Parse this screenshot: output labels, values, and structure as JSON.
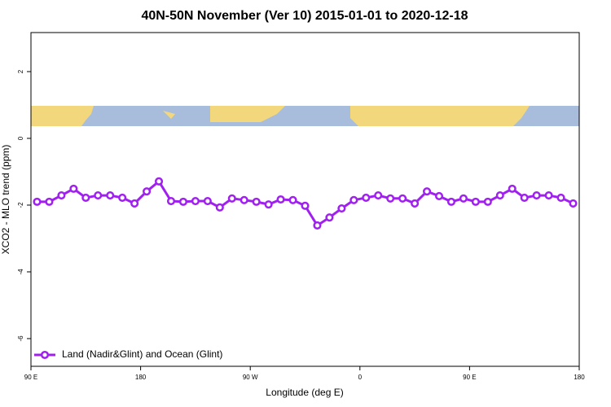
{
  "chart_data": {
    "type": "line",
    "title": "40N-50N November (Ver 10)   2015-01-01 to 2020-12-18",
    "x_label": "Longitude (deg E)",
    "y_label": "XCO2 - MLO trend (ppm)",
    "x": [
      95,
      105,
      115,
      125,
      135,
      145,
      155,
      165,
      175,
      185,
      195,
      205,
      215,
      225,
      235,
      245,
      255,
      265,
      275,
      285,
      295,
      305,
      315,
      325,
      335,
      345,
      355,
      365,
      375,
      385,
      395,
      405,
      415,
      425,
      435,
      445,
      455,
      465,
      475,
      485,
      495,
      505,
      515,
      525,
      535
    ],
    "series": [
      {
        "name": "Land (Nadir&Glint) and Ocean (Glint)",
        "color": "#a020f0",
        "values": [
          -1.9,
          -1.9,
          -1.71,
          -1.51,
          -1.78,
          -1.71,
          -1.71,
          -1.78,
          -1.95,
          -1.59,
          -1.29,
          -1.88,
          -1.9,
          -1.88,
          -1.88,
          -2.07,
          -1.8,
          -1.85,
          -1.9,
          -1.98,
          -1.83,
          -1.85,
          -2.02,
          -2.61,
          -2.37,
          -2.1,
          -1.85,
          -1.78,
          -1.71,
          -1.8,
          -1.8,
          -1.95,
          -1.59,
          -1.73,
          -1.9,
          -1.8,
          -1.9,
          -1.9,
          -1.71,
          -1.51,
          -1.78,
          -1.71,
          -1.71,
          -1.78,
          -1.95
        ]
      }
    ],
    "xlim": [
      90,
      540
    ],
    "xticks": [
      {
        "value": 90,
        "label": "90 E"
      },
      {
        "value": 180,
        "label": "180"
      },
      {
        "value": 270,
        "label": "90 W"
      },
      {
        "value": 360,
        "label": "0"
      },
      {
        "value": 450,
        "label": "90 E"
      },
      {
        "value": 540,
        "label": "180"
      }
    ],
    "ylim": [
      -6.83,
      3.17
    ],
    "yticks": [
      -6,
      -4,
      -2,
      0,
      2
    ],
    "legend": "bottom-left"
  }
}
